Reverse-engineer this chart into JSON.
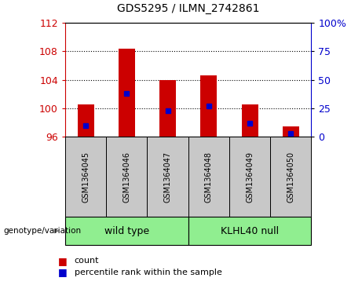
{
  "title": "GDS5295 / ILMN_2742861",
  "samples": [
    "GSM1364045",
    "GSM1364046",
    "GSM1364047",
    "GSM1364048",
    "GSM1364049",
    "GSM1364050"
  ],
  "bar_bottom": 96,
  "bar_tops": [
    100.5,
    108.4,
    104.0,
    104.6,
    100.5,
    97.5
  ],
  "percentile_values": [
    10,
    38,
    23,
    27,
    12,
    3
  ],
  "ylim_left": [
    96,
    112
  ],
  "ylim_right": [
    0,
    100
  ],
  "yticks_left": [
    96,
    100,
    104,
    108,
    112
  ],
  "yticks_right": [
    0,
    25,
    50,
    75,
    100
  ],
  "ytick_right_labels": [
    "0",
    "25",
    "50",
    "75",
    "100%"
  ],
  "bar_color": "#CC0000",
  "marker_color": "#0000CC",
  "bg_color": "#C8C8C8",
  "label_color_left": "#CC0000",
  "label_color_right": "#0000CC",
  "genotype_label": "genotype/variation",
  "legend_count": "count",
  "legend_percentile": "percentile rank within the sample",
  "group1_label": "wild type",
  "group2_label": "KLHL40 null",
  "group_color": "#90EE90",
  "dotted_lines": [
    100,
    104,
    108
  ],
  "bar_width": 0.4
}
